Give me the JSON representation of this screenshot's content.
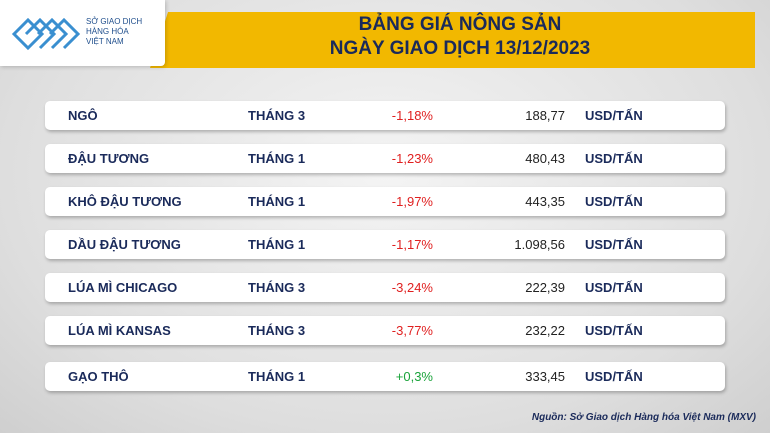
{
  "header": {
    "logo_lines": [
      "SỞ GIAO DỊCH",
      "HÀNG HÓA",
      "VIỆT NAM"
    ],
    "title_lines": [
      "BẢNG GIÁ NÔNG SẢN",
      "NGÀY GIAO DỊCH 13/12/2023"
    ]
  },
  "table": {
    "rows": [
      [
        "NGÔ",
        "THÁNG 3",
        "-1,18%",
        "188,77",
        "USD/TẤN"
      ],
      [
        "ĐẬU TƯƠNG",
        "THÁNG 1",
        "-1,23%",
        "480,43",
        "USD/TẤN"
      ],
      [
        "KHÔ ĐẬU TƯƠNG",
        "THÁNG 1",
        "-1,97%",
        "443,35",
        "USD/TẤN"
      ],
      [
        "DẦU ĐẬU TƯƠNG",
        "THÁNG 1",
        "-1,17%",
        "1.098,56",
        "USD/TẤN"
      ],
      [
        "LÚA MÌ CHICAGO",
        "THÁNG 3",
        "-3,24%",
        "222,39",
        "USD/TẤN"
      ],
      [
        "LÚA MÌ KANSAS",
        "THÁNG 3",
        "-3,77%",
        "232,22",
        "USD/TẤN"
      ],
      [
        "GẠO THÔ",
        "THÁNG 1",
        "+0,3%",
        "333,45",
        "USD/TẤN"
      ]
    ]
  },
  "source": "Nguồn: Sở Giao dịch Hàng hóa Việt Nam (MXV)"
}
